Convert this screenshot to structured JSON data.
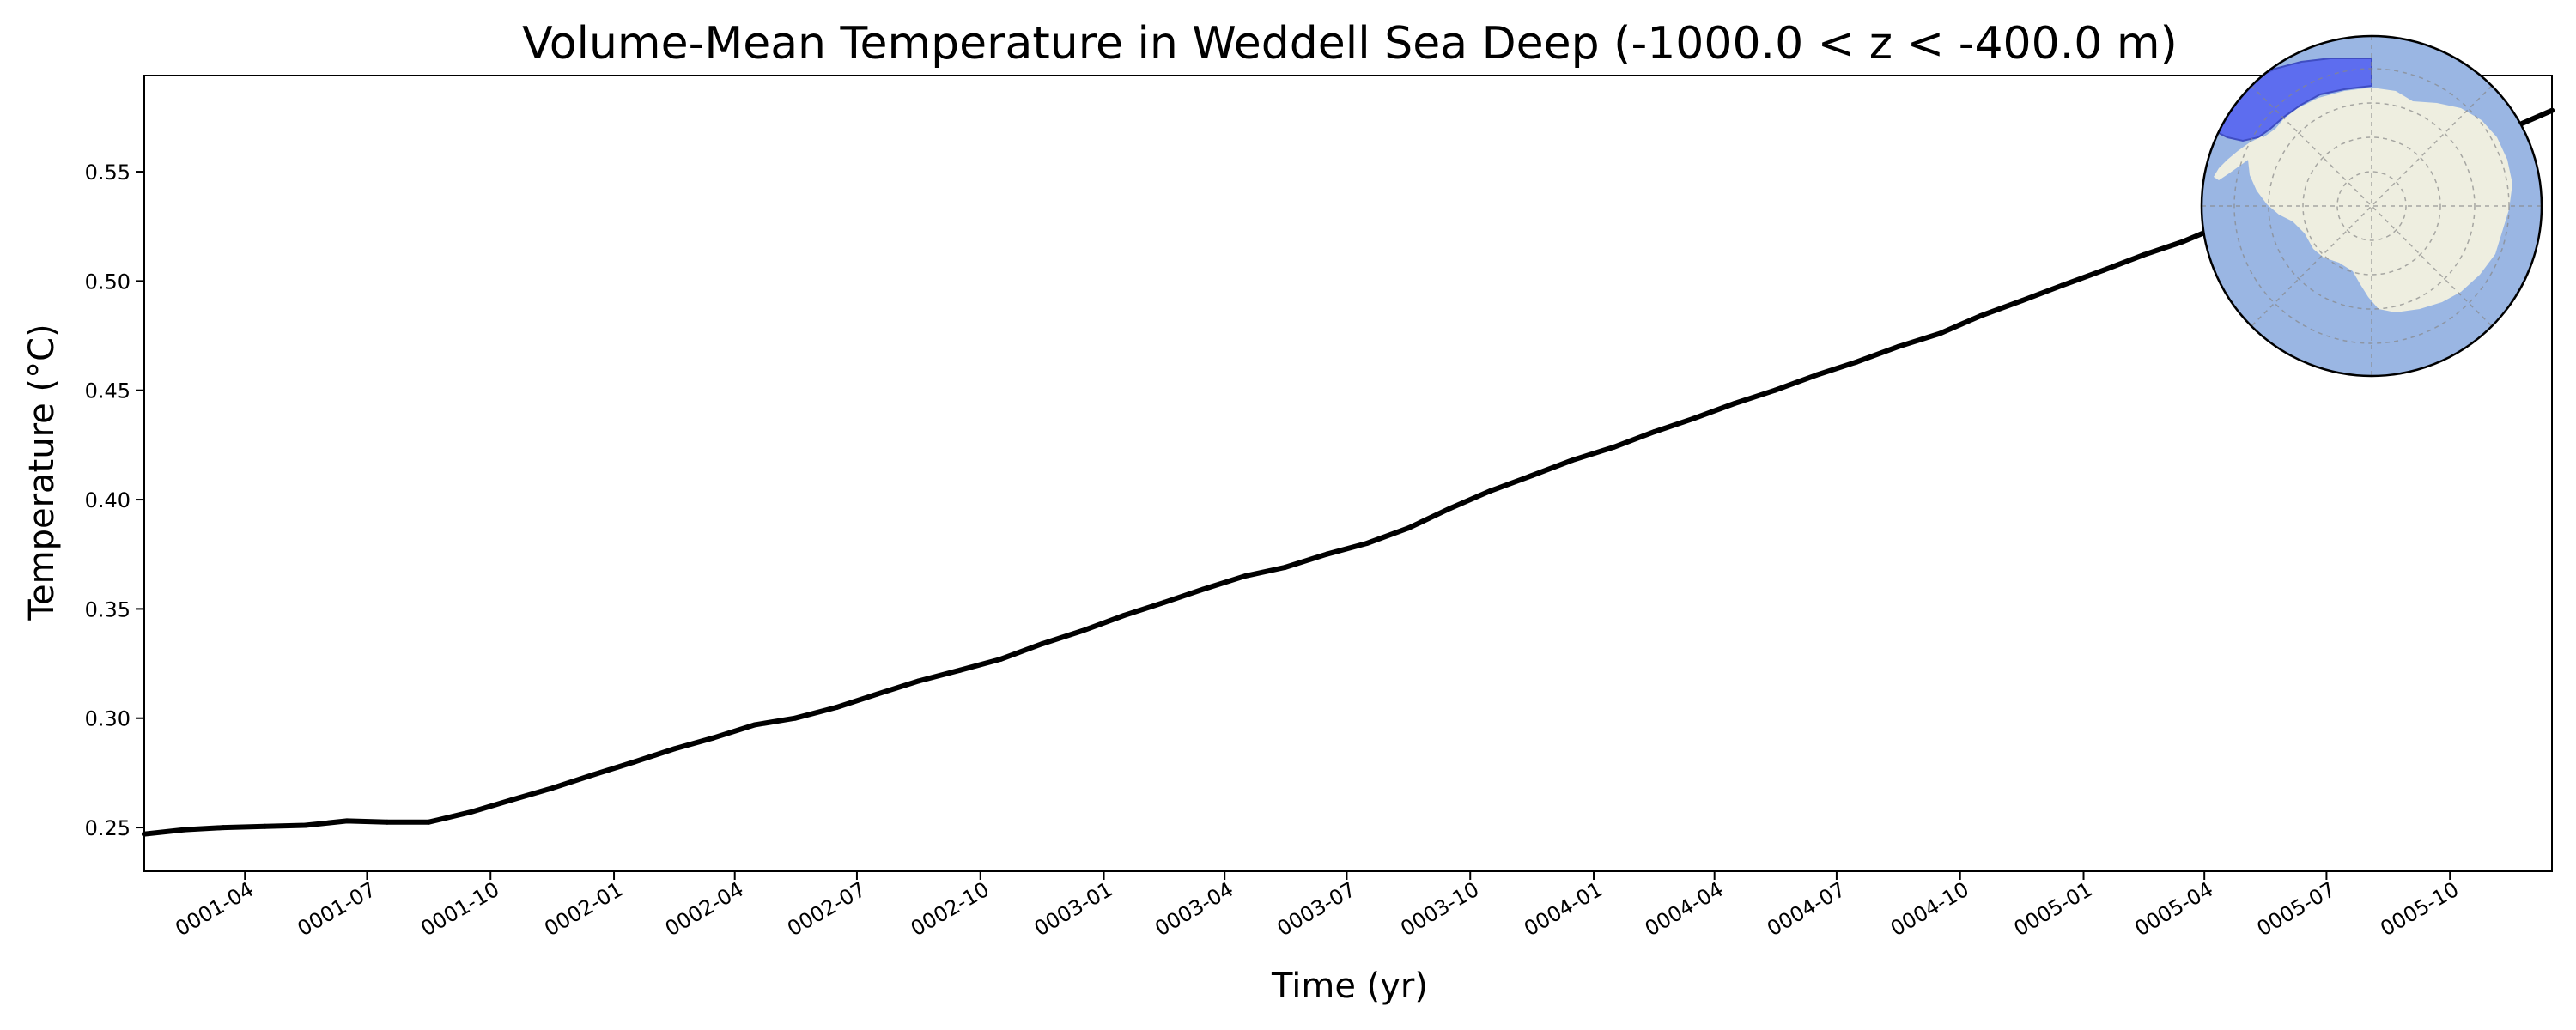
{
  "chart_data": {
    "type": "line",
    "title": "Volume-Mean Temperature in Weddell Sea Deep (-1000.0 < z < -400.0 m)",
    "xlabel": "Time (yr)",
    "ylabel": "Temperature (°C)",
    "xlim": [
      "0001-01-16",
      "0005-12-16"
    ],
    "ylim": [
      0.23,
      0.594
    ],
    "grid": false,
    "x_ticks": [
      "0001-04",
      "0001-07",
      "0001-10",
      "0002-01",
      "0002-04",
      "0002-07",
      "0002-10",
      "0003-01",
      "0003-04",
      "0003-07",
      "0003-10",
      "0004-01",
      "0004-04",
      "0004-07",
      "0004-10",
      "0005-01",
      "0005-04",
      "0005-07",
      "0005-10"
    ],
    "y_ticks": [
      "0.25",
      "0.30",
      "0.35",
      "0.40",
      "0.45",
      "0.50",
      "0.55"
    ],
    "series": [
      {
        "color": "#000000",
        "x": [
          "0001-01-16",
          "0001-02-15",
          "0001-03-16",
          "0001-04-16",
          "0001-05-16",
          "0001-06-16",
          "0001-07-16",
          "0001-08-16",
          "0001-09-16",
          "0001-10-16",
          "0001-11-16",
          "0001-12-16",
          "0002-01-16",
          "0002-02-15",
          "0002-03-16",
          "0002-04-16",
          "0002-05-16",
          "0002-06-16",
          "0002-07-16",
          "0002-08-16",
          "0002-09-16",
          "0002-10-16",
          "0002-11-16",
          "0002-12-16",
          "0003-01-16",
          "0003-02-15",
          "0003-03-16",
          "0003-04-16",
          "0003-05-16",
          "0003-06-16",
          "0003-07-16",
          "0003-08-16",
          "0003-09-16",
          "0003-10-16",
          "0003-11-16",
          "0003-12-16",
          "0004-01-16",
          "0004-02-15",
          "0004-03-16",
          "0004-04-16",
          "0004-05-16",
          "0004-06-16",
          "0004-07-16",
          "0004-08-16",
          "0004-09-16",
          "0004-10-16",
          "0004-11-16",
          "0004-12-16",
          "0005-01-16",
          "0005-02-15",
          "0005-03-16",
          "0005-04-16",
          "0005-05-16",
          "0005-06-16",
          "0005-07-16",
          "0005-08-16",
          "0005-09-16",
          "0005-10-16",
          "0005-11-16",
          "0005-12-16"
        ],
        "y": [
          0.247,
          0.249,
          0.25,
          0.2505,
          0.251,
          0.253,
          0.2525,
          0.2525,
          0.257,
          0.2625,
          0.268,
          0.274,
          0.28,
          0.286,
          0.291,
          0.297,
          0.3,
          0.305,
          0.311,
          0.317,
          0.322,
          0.327,
          0.334,
          0.34,
          0.347,
          0.353,
          0.359,
          0.365,
          0.369,
          0.375,
          0.38,
          0.387,
          0.396,
          0.404,
          0.411,
          0.418,
          0.424,
          0.431,
          0.437,
          0.444,
          0.45,
          0.457,
          0.463,
          0.47,
          0.476,
          0.484,
          0.491,
          0.498,
          0.505,
          0.512,
          0.518,
          0.526,
          0.532,
          0.538,
          0.545,
          0.551,
          0.557,
          0.563,
          0.57,
          0.578
        ]
      }
    ],
    "inset_map": {
      "type": "south-polar-map",
      "ocean_color": "#9ab6e3",
      "land_color": "#eeeee0",
      "region_color": "#5a6af0",
      "highlighted_region": "Weddell Sea"
    }
  }
}
